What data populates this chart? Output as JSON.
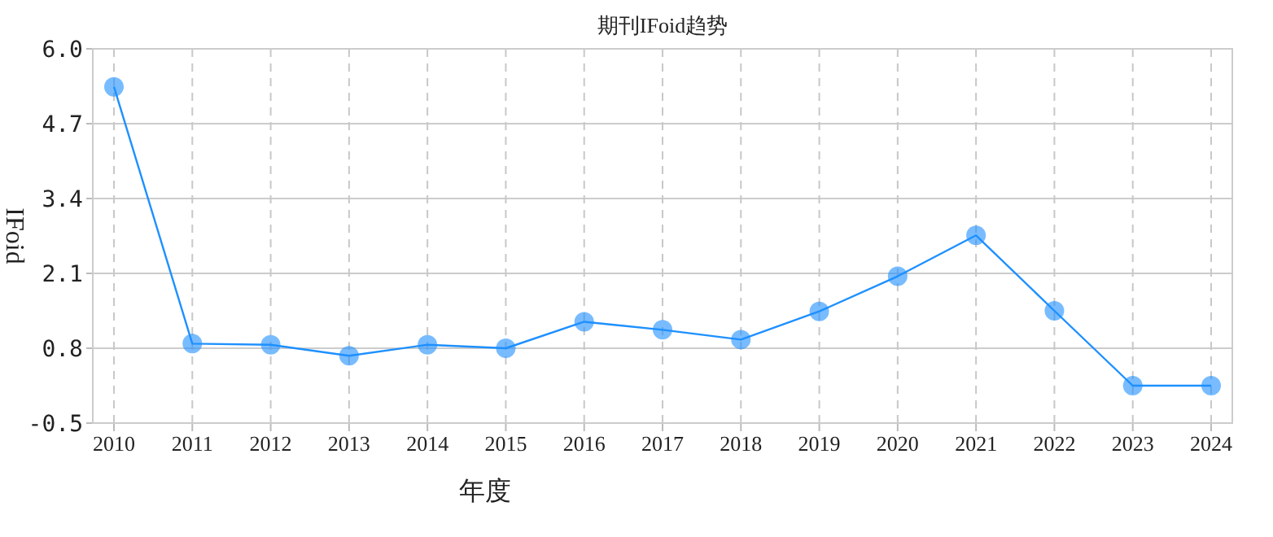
{
  "chart_data": {
    "type": "line",
    "title": "期刊IFoid趋势",
    "xlabel": "年度",
    "ylabel": "IFoid",
    "categories": [
      "2010",
      "2011",
      "2012",
      "2013",
      "2014",
      "2015",
      "2016",
      "2017",
      "2018",
      "2019",
      "2020",
      "2021",
      "2022",
      "2023",
      "2024"
    ],
    "series": [
      {
        "color": "#1e90ff",
        "values": [
          5.34,
          0.88,
          0.86,
          0.67,
          0.86,
          0.8,
          1.26,
          1.12,
          0.95,
          1.44,
          2.05,
          2.76,
          1.45,
          0.15,
          0.15
        ]
      }
    ],
    "ylim": [
      -0.5,
      6
    ],
    "yticks": [
      -0.5,
      {
        "value": 0.8,
        "label": "0.8"
      },
      {
        "value": 2.1,
        "label": "2.1"
      },
      {
        "value": 3.4,
        "label": "3.4"
      },
      {
        "value": 4.7,
        "label": "4.7"
      },
      {
        "value": 6,
        "label": "6.0"
      }
    ],
    "grid": true,
    "marker": "circle",
    "line_style": "solid"
  }
}
